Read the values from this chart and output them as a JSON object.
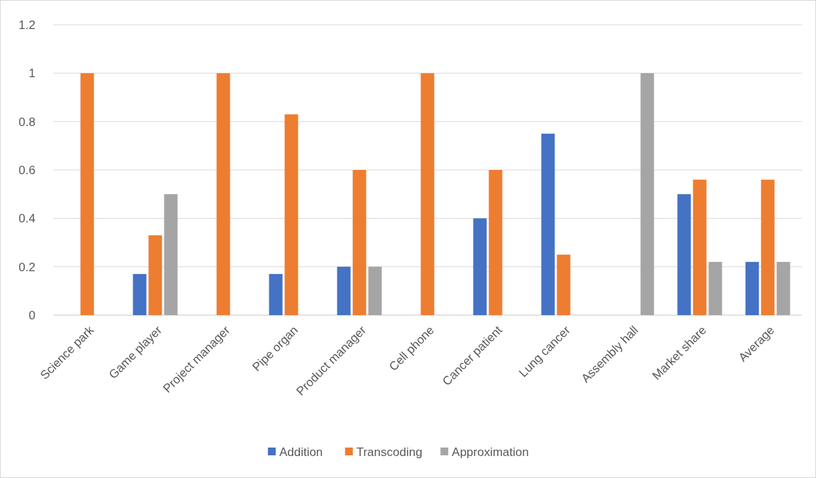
{
  "chart_data": {
    "type": "bar",
    "categories": [
      "Science park",
      "Game player",
      "Project manager",
      "Pipe organ",
      "Product manager",
      "Cell phone",
      "Cancer patient",
      "Lung cancer",
      "Assembly hall",
      "Market share",
      "Average"
    ],
    "series": [
      {
        "name": "Addition",
        "color": "#4472c4",
        "values": [
          0,
          0.17,
          0,
          0.17,
          0.2,
          0,
          0.4,
          0.75,
          0,
          0.5,
          0.22
        ]
      },
      {
        "name": "Transcoding",
        "color": "#ed7d31",
        "values": [
          1,
          0.33,
          1,
          0.83,
          0.6,
          1,
          0.6,
          0.25,
          0,
          0.56,
          0.56
        ]
      },
      {
        "name": "Approximation",
        "color": "#a5a5a5",
        "values": [
          0,
          0.5,
          0,
          0,
          0.2,
          0,
          0,
          0,
          1,
          0.22,
          0.22
        ]
      }
    ],
    "ylim": [
      0,
      1.2
    ],
    "yticks": [
      0,
      0.2,
      0.4,
      0.6,
      0.8,
      1,
      1.2
    ],
    "grid": "y",
    "legend": "bottom"
  }
}
